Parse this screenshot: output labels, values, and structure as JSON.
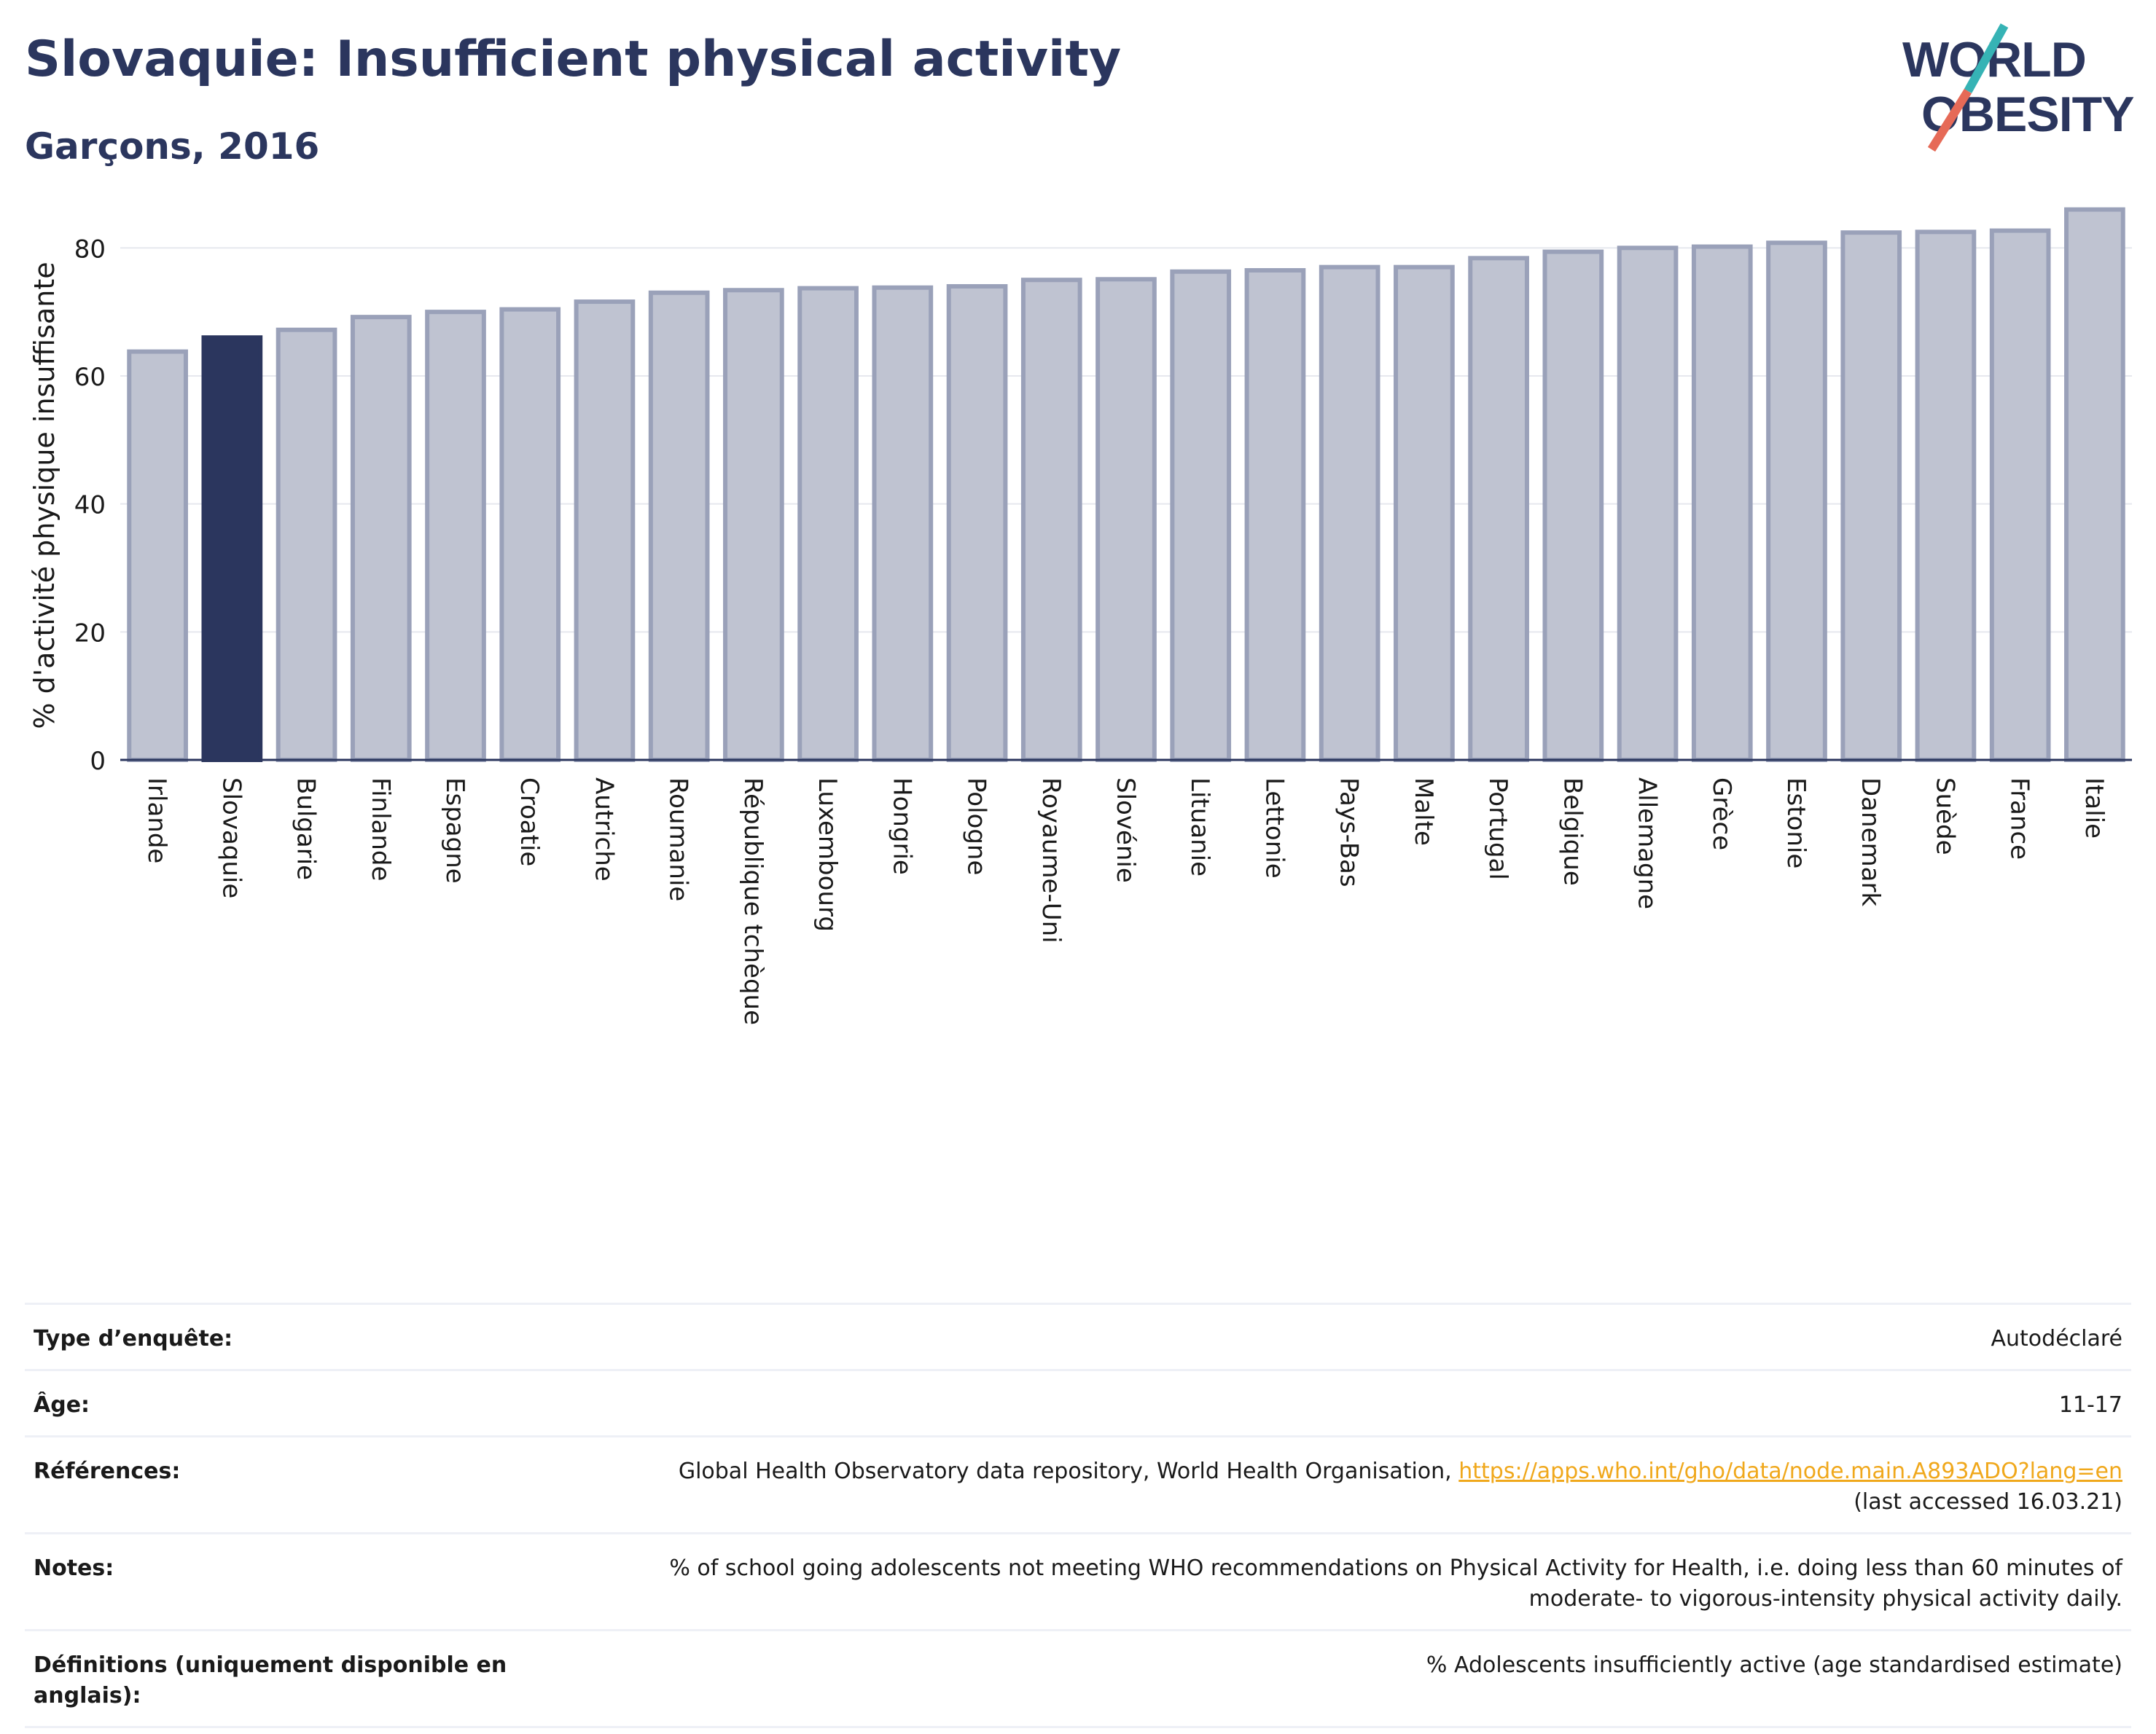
{
  "header": {
    "title": "Slovaquie: Insufficient physical activity",
    "subtitle": "Garçons, 2016"
  },
  "logo": {
    "line1": "WORLD",
    "line2": "OBESITY",
    "colors": [
      "#2b365e",
      "#36b3b5",
      "#e66a57"
    ]
  },
  "colors": {
    "bar": "#bfc3d1",
    "bar_border": "#9aa1b9",
    "highlight": "#2b365e",
    "axis": "#2b365e",
    "grid": "#e6e8ee",
    "link": "#f0a81c"
  },
  "chart_data": {
    "type": "bar",
    "title": "Slovaquie: Insufficient physical activity",
    "subtitle": "Garçons, 2016",
    "ylabel": "% d'activité physique insuffisante",
    "xlabel": "",
    "ylim": [
      0,
      88
    ],
    "yticks": [
      0,
      20,
      40,
      60,
      80
    ],
    "grid": true,
    "highlight": "Slovaquie",
    "categories": [
      "Irlande",
      "Slovaquie",
      "Bulgarie",
      "Finlande",
      "Espagne",
      "Croatie",
      "Autriche",
      "Roumanie",
      "République tchèque",
      "Luxembourg",
      "Hongrie",
      "Pologne",
      "Royaume-Uni",
      "Slovénie",
      "Lituanie",
      "Lettonie",
      "Pays-Bas",
      "Malte",
      "Portugal",
      "Belgique",
      "Allemagne",
      "Grèce",
      "Estonie",
      "Danemark",
      "Suède",
      "France",
      "Italie"
    ],
    "values": [
      63.8,
      66.0,
      67.2,
      69.2,
      70.0,
      70.4,
      71.6,
      73.0,
      73.4,
      73.7,
      73.8,
      74.0,
      75.0,
      75.1,
      76.3,
      76.5,
      77.0,
      77.0,
      78.4,
      79.4,
      80.0,
      80.2,
      80.8,
      82.4,
      82.5,
      82.7,
      86.0
    ]
  },
  "info": {
    "rows": [
      {
        "label": "Type d’enquête:",
        "value": "Autodéclaré"
      },
      {
        "label": "Âge:",
        "value": "11-17"
      },
      {
        "label": "Références:",
        "value": "Global Health Observatory data repository, World Health Organisation,",
        "link": "https://apps.who.int/gho/data/node.main.A893ADO?lang=en",
        "value2": "(last accessed 16.03.21)"
      },
      {
        "label": "Notes:",
        "value": "% of school going adolescents not meeting WHO recommendations on Physical Activity for Health, i.e. doing less than 60 minutes of",
        "value2": "moderate- to vigorous-intensity physical activity daily."
      },
      {
        "label": "Définitions (uniquement disponible en anglais):",
        "value": "% Adolescents insufficiently active (age standardised estimate)"
      }
    ]
  }
}
